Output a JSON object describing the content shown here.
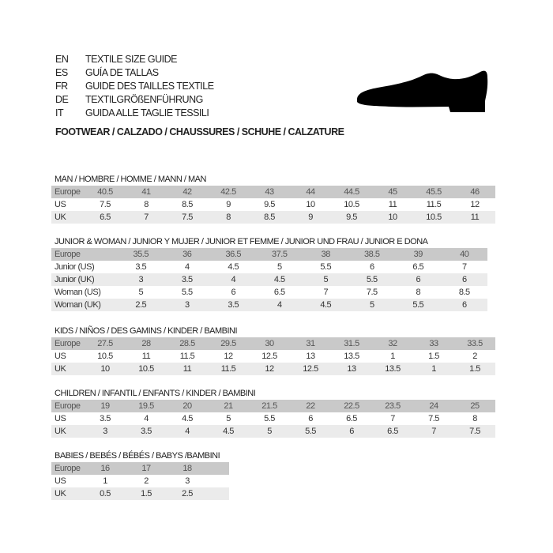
{
  "languages": [
    {
      "code": "EN",
      "text": "TEXTILE SIZE GUIDE"
    },
    {
      "code": "ES",
      "text": "GUÍA DE TALLAS"
    },
    {
      "code": "FR",
      "text": "GUIDE DES TAILLES TEXTILE"
    },
    {
      "code": "DE",
      "text": "TEXTILGRÖßENFÜHRUNG"
    },
    {
      "code": "IT",
      "text": "GUIDA ALLE TAGLIE TESSILI"
    }
  ],
  "footwear_title": "FOOTWEAR / CALZADO / CHAUSSURES / SCHUHE / CALZATURE",
  "icon": "shoe-icon",
  "sections": [
    {
      "title": "MAN / HOMBRE / HOMME / MANN / MAN",
      "rows": [
        {
          "label": "Europe",
          "values": [
            "40.5",
            "41",
            "42",
            "42.5",
            "43",
            "44",
            "44.5",
            "45",
            "45.5",
            "46"
          ]
        },
        {
          "label": "US",
          "values": [
            "7.5",
            "8",
            "8.5",
            "9",
            "9.5",
            "10",
            "10.5",
            "11",
            "11.5",
            "12"
          ]
        },
        {
          "label": "UK",
          "values": [
            "6.5",
            "7",
            "7.5",
            "8",
            "8.5",
            "9",
            "9.5",
            "10",
            "10.5",
            "11"
          ]
        }
      ]
    },
    {
      "title": "JUNIOR & WOMAN / JUNIOR Y MUJER / JUNIOR ET FEMME / JUNIOR UND FRAU / JUNIOR E DONA",
      "rows": [
        {
          "label": "Europe",
          "values": [
            "35.5",
            "36",
            "36.5",
            "37.5",
            "38",
            "38.5",
            "39",
            "40"
          ]
        },
        {
          "label": "Junior (US)",
          "values": [
            "3.5",
            "4",
            "4.5",
            "5",
            "5.5",
            "6",
            "6.5",
            "7"
          ]
        },
        {
          "label": "Junior (UK)",
          "values": [
            "3",
            "3.5",
            "4",
            "4.5",
            "5",
            "5.5",
            "6",
            "6"
          ]
        },
        {
          "label": "Woman (US)",
          "values": [
            "5",
            "5.5",
            "6",
            "6.5",
            "7",
            "7.5",
            "8",
            "8.5"
          ]
        },
        {
          "label": "Woman (UK)",
          "values": [
            "2.5",
            "3",
            "3.5",
            "4",
            "4.5",
            "5",
            "5.5",
            "6"
          ]
        }
      ]
    },
    {
      "title": "KIDS / NIÑOS / DES GAMINS / KINDER / BAMBINI",
      "rows": [
        {
          "label": "Europe",
          "values": [
            "27.5",
            "28",
            "28.5",
            "29.5",
            "30",
            "31",
            "31.5",
            "32",
            "33",
            "33.5"
          ]
        },
        {
          "label": "US",
          "values": [
            "10.5",
            "11",
            "11.5",
            "12",
            "12.5",
            "13",
            "13.5",
            "1",
            "1.5",
            "2"
          ]
        },
        {
          "label": "UK",
          "values": [
            "10",
            "10.5",
            "11",
            "11.5",
            "12",
            "12.5",
            "13",
            "13.5",
            "1",
            "1.5"
          ]
        }
      ]
    },
    {
      "title": "CHILDREN / INFANTIL / ENFANTS / KINDER / BAMBINI",
      "rows": [
        {
          "label": "Europe",
          "values": [
            "19",
            "19.5",
            "20",
            "21",
            "21.5",
            "22",
            "22.5",
            "23.5",
            "24",
            "25"
          ]
        },
        {
          "label": "US",
          "values": [
            "3.5",
            "4",
            "4.5",
            "5",
            "5.5",
            "6",
            "6.5",
            "7",
            "7.5",
            "8"
          ]
        },
        {
          "label": "UK",
          "values": [
            "3",
            "3.5",
            "4",
            "4.5",
            "5",
            "5.5",
            "6",
            "6.5",
            "7",
            "7.5"
          ]
        }
      ]
    },
    {
      "title": "BABIES  / BEBÉS / BÉBÉS / BABYS /BAMBINI",
      "rows": [
        {
          "label": "Europe",
          "values": [
            "16",
            "17",
            "18"
          ]
        },
        {
          "label": "US",
          "values": [
            "1",
            "2",
            "3"
          ]
        },
        {
          "label": "UK",
          "values": [
            "0.5",
            "1.5",
            "2.5"
          ]
        }
      ]
    }
  ]
}
